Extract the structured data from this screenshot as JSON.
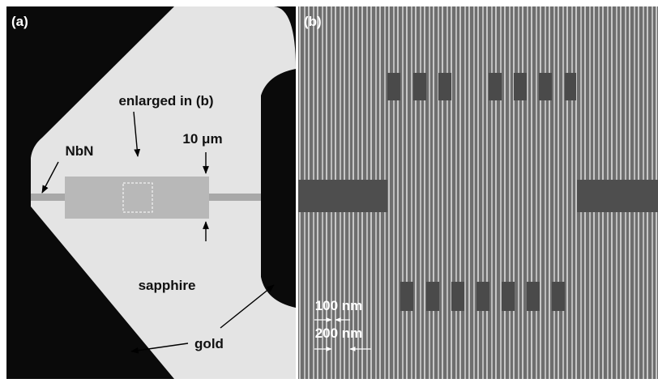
{
  "panel_a": {
    "label": "(a)",
    "annotations": {
      "enlarged": "enlarged in (b)",
      "width": "10 μm",
      "nbn": "NbN",
      "sapphire": "sapphire",
      "gold": "gold"
    }
  },
  "panel_b": {
    "label": "(b)",
    "scale": {
      "line": "100 nm",
      "pitch": "200 nm"
    }
  }
}
